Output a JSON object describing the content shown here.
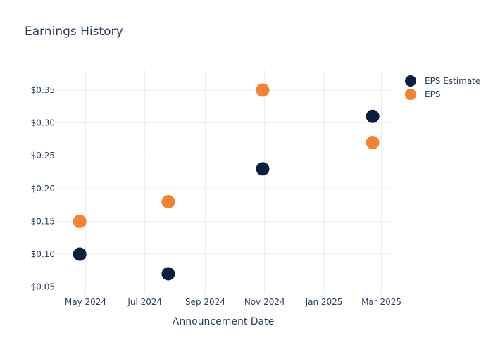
{
  "chart_data": {
    "type": "scatter",
    "title": "Earnings History",
    "xlabel": "Announcement Date",
    "ylabel": "",
    "x_ticks": [
      {
        "date": "2024-05-01",
        "label": "May 2024"
      },
      {
        "date": "2024-07-01",
        "label": "Jul 2024"
      },
      {
        "date": "2024-09-01",
        "label": "Sep 2024"
      },
      {
        "date": "2024-11-01",
        "label": "Nov 2024"
      },
      {
        "date": "2025-01-01",
        "label": "Jan 2025"
      },
      {
        "date": "2025-03-01",
        "label": "Mar 2025"
      }
    ],
    "xlim": [
      "2024-04-01",
      "2025-03-10"
    ],
    "ylim": [
      0.04,
      0.38
    ],
    "y_ticks": [
      {
        "value": 0.05,
        "label": "$0.05"
      },
      {
        "value": 0.1,
        "label": "$0.10"
      },
      {
        "value": 0.15,
        "label": "$0.15"
      },
      {
        "value": 0.2,
        "label": "$0.20"
      },
      {
        "value": 0.25,
        "label": "$0.25"
      },
      {
        "value": 0.3,
        "label": "$0.30"
      },
      {
        "value": 0.35,
        "label": "$0.35"
      }
    ],
    "grid": true,
    "legend_position": "top-right",
    "series": [
      {
        "name": "EPS Estimate",
        "color": "#0b1f3f",
        "points": [
          {
            "x": "2024-04-25",
            "y": 0.1
          },
          {
            "x": "2024-07-25",
            "y": 0.07
          },
          {
            "x": "2024-10-30",
            "y": 0.23
          },
          {
            "x": "2025-02-20",
            "y": 0.31
          }
        ]
      },
      {
        "name": "EPS",
        "color": "#f58231",
        "points": [
          {
            "x": "2024-04-25",
            "y": 0.15
          },
          {
            "x": "2024-07-25",
            "y": 0.18
          },
          {
            "x": "2024-10-30",
            "y": 0.35
          },
          {
            "x": "2025-02-20",
            "y": 0.27
          }
        ]
      }
    ]
  }
}
